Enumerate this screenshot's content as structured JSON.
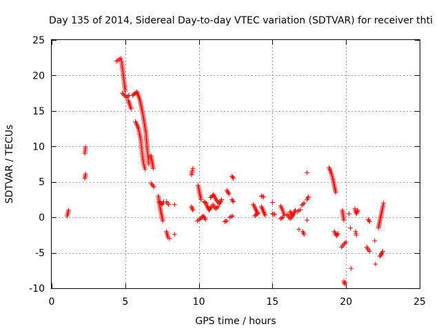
{
  "chart_data": {
    "type": "scatter",
    "title": "Day 135 of 2014, Sidereal Day-to-day VTEC variation (SDTVAR) for receiver thti",
    "xlabel": "GPS time / hours",
    "ylabel": "SDTVAR / TECUs",
    "xlim": [
      0,
      25
    ],
    "ylim": [
      -10,
      25
    ],
    "xticks": [
      "0",
      "5",
      "10",
      "15",
      "20",
      "25"
    ],
    "yticks": [
      "-10",
      "-5",
      "0",
      "5",
      "10",
      "15",
      "20",
      "25"
    ],
    "grid": true,
    "marker": "plus",
    "color": "#ff0000",
    "series": [
      {
        "name": "SDTVAR",
        "segments": [
          [
            [
              1.05,
              0.2
            ],
            [
              1.15,
              1.0
            ]
          ],
          [
            [
              2.25,
              5.5
            ],
            [
              2.3,
              6.1
            ]
          ],
          [
            [
              2.25,
              9.0
            ],
            [
              2.3,
              9.9
            ]
          ],
          [
            [
              4.4,
              22.0
            ],
            [
              4.7,
              22.4
            ]
          ],
          [
            [
              4.75,
              22.0
            ],
            [
              4.9,
              19.5
            ],
            [
              5.0,
              17.8
            ]
          ],
          [
            [
              4.8,
              17.5
            ],
            [
              5.1,
              16.9
            ],
            [
              5.25,
              17.2
            ]
          ],
          [
            [
              5.2,
              16.5
            ],
            [
              5.4,
              15.3
            ]
          ],
          [
            [
              5.5,
              17.2
            ],
            [
              5.8,
              17.7
            ],
            [
              6.0,
              16.5
            ],
            [
              6.2,
              14.5
            ],
            [
              6.4,
              12.0
            ],
            [
              6.5,
              9.5
            ],
            [
              6.6,
              7.5
            ]
          ],
          [
            [
              5.7,
              13.5
            ],
            [
              5.9,
              12.5
            ],
            [
              6.05,
              11.0
            ],
            [
              6.15,
              9.0
            ],
            [
              6.25,
              7.5
            ],
            [
              6.35,
              6.8
            ]
          ],
          [
            [
              6.75,
              8.7
            ],
            [
              6.85,
              7.5
            ],
            [
              6.9,
              6.9
            ]
          ],
          [
            [
              6.75,
              4.8
            ],
            [
              6.95,
              4.3
            ]
          ],
          [
            [
              7.25,
              3.0
            ],
            [
              7.35,
              1.5
            ],
            [
              7.45,
              0.5
            ],
            [
              7.55,
              -0.5
            ]
          ],
          [
            [
              7.3,
              2.2
            ],
            [
              7.5,
              1.8
            ],
            [
              7.6,
              2.2
            ]
          ],
          [
            [
              7.8,
              2.2
            ],
            [
              7.95,
              1.8
            ]
          ],
          [
            [
              7.8,
              -2.0
            ],
            [
              7.9,
              -2.8
            ],
            [
              8.0,
              -3.0
            ]
          ],
          [
            [
              8.35,
              1.8
            ]
          ],
          [
            [
              8.35,
              -2.4
            ]
          ],
          [
            [
              9.5,
              6.0
            ],
            [
              9.55,
              6.6
            ],
            [
              9.6,
              6.9
            ]
          ],
          [
            [
              9.5,
              1.5
            ],
            [
              9.6,
              1.0
            ]
          ],
          [
            [
              9.95,
              4.5
            ],
            [
              10.05,
              3.5
            ],
            [
              10.15,
              2.5
            ]
          ],
          [
            [
              9.9,
              -0.5
            ],
            [
              10.1,
              -0.2
            ],
            [
              10.3,
              0.2
            ],
            [
              10.45,
              -0.3
            ]
          ],
          [
            [
              10.35,
              2.2
            ],
            [
              10.5,
              2.0
            ]
          ],
          [
            [
              10.5,
              1.8
            ],
            [
              10.7,
              1.0
            ],
            [
              10.85,
              1.5
            ]
          ],
          [
            [
              10.8,
              2.8
            ],
            [
              11.0,
              3.2
            ],
            [
              11.2,
              2.4
            ],
            [
              11.4,
              1.9
            ],
            [
              11.55,
              2.5
            ]
          ],
          [
            [
              10.95,
              1.8
            ],
            [
              11.15,
              1.2
            ],
            [
              11.3,
              1.5
            ]
          ],
          [
            [
              11.75,
              -0.6
            ],
            [
              11.9,
              -0.5
            ]
          ],
          [
            [
              11.9,
              3.8
            ],
            [
              12.05,
              3.3
            ]
          ],
          [
            [
              12.1,
              0.0
            ],
            [
              12.3,
              0.2
            ]
          ],
          [
            [
              12.25,
              2.5
            ],
            [
              12.35,
              2.2
            ]
          ],
          [
            [
              12.25,
              5.8
            ],
            [
              12.35,
              5.5
            ]
          ],
          [
            [
              13.7,
              1.8
            ],
            [
              13.85,
              1.2
            ],
            [
              14.0,
              0.5
            ]
          ],
          [
            [
              13.8,
              0.2
            ],
            [
              14.0,
              0.6
            ]
          ],
          [
            [
              14.25,
              3.0
            ],
            [
              14.4,
              2.9
            ]
          ],
          [
            [
              14.25,
              1.5
            ],
            [
              14.4,
              0.8
            ],
            [
              14.5,
              0.3
            ]
          ],
          [
            [
              15.0,
              2.1
            ]
          ],
          [
            [
              15.0,
              0.5
            ],
            [
              15.15,
              0.4
            ]
          ],
          [
            [
              15.55,
              1.6
            ],
            [
              15.7,
              1.0
            ],
            [
              15.8,
              0.3
            ]
          ],
          [
            [
              15.55,
              -0.2
            ],
            [
              15.7,
              0.0
            ]
          ],
          [
            [
              16.0,
              0.4
            ],
            [
              16.2,
              -0.2
            ],
            [
              16.4,
              0.3
            ],
            [
              16.55,
              1.0
            ]
          ],
          [
            [
              16.2,
              0.8
            ],
            [
              16.35,
              0.3
            ]
          ],
          [
            [
              16.7,
              0.8
            ],
            [
              16.9,
              1.1
            ]
          ],
          [
            [
              16.8,
              -1.7
            ]
          ],
          [
            [
              17.0,
              1.7
            ],
            [
              17.15,
              2.0
            ]
          ],
          [
            [
              17.05,
              -2.0
            ],
            [
              17.15,
              -2.4
            ]
          ],
          [
            [
              17.35,
              2.5
            ],
            [
              17.45,
              2.9
            ]
          ],
          [
            [
              17.35,
              6.3
            ]
          ],
          [
            [
              17.35,
              -0.4
            ]
          ],
          [
            [
              18.85,
              7.0
            ],
            [
              19.0,
              6.2
            ],
            [
              19.1,
              5.5
            ],
            [
              19.2,
              4.5
            ],
            [
              19.3,
              3.5
            ]
          ],
          [
            [
              19.2,
              -2.0
            ],
            [
              19.35,
              -2.6
            ],
            [
              19.45,
              -2.3
            ]
          ],
          [
            [
              19.7,
              -4.2
            ],
            [
              19.85,
              -3.8
            ],
            [
              20.0,
              -3.5
            ]
          ],
          [
            [
              19.85,
              -9.0
            ],
            [
              19.9,
              -9.4
            ],
            [
              19.95,
              -9.2
            ]
          ],
          [
            [
              19.75,
              1.0
            ],
            [
              19.85,
              -0.4
            ]
          ],
          [
            [
              20.2,
              0.5
            ]
          ],
          [
            [
              20.3,
              -1.5
            ]
          ],
          [
            [
              20.35,
              -7.2
            ]
          ],
          [
            [
              20.6,
              1.2
            ],
            [
              20.7,
              0.5
            ],
            [
              20.8,
              1.0
            ]
          ],
          [
            [
              20.65,
              -2.0
            ],
            [
              20.7,
              -2.5
            ]
          ],
          [
            [
              21.4,
              -4.2
            ],
            [
              21.6,
              -4.8
            ]
          ],
          [
            [
              21.5,
              -0.3
            ],
            [
              21.6,
              -0.6
            ]
          ],
          [
            [
              21.95,
              -3.3
            ]
          ],
          [
            [
              22.0,
              -6.6
            ]
          ],
          [
            [
              22.2,
              -1.5
            ],
            [
              22.3,
              -0.5
            ],
            [
              22.4,
              0.5
            ],
            [
              22.5,
              1.5
            ],
            [
              22.55,
              2.0
            ]
          ],
          [
            [
              22.3,
              -5.5
            ],
            [
              22.45,
              -5.0
            ],
            [
              22.5,
              -4.8
            ]
          ]
        ]
      }
    ]
  }
}
